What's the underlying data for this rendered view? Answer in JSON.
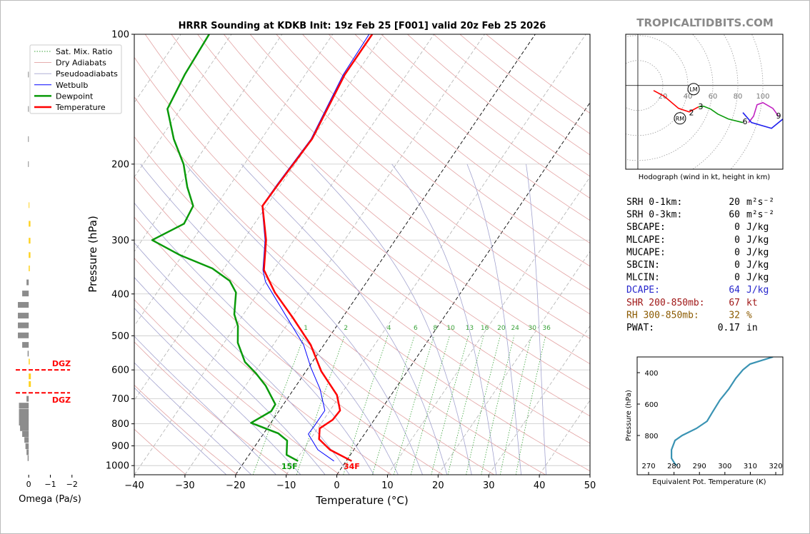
{
  "watermark": "TROPICALTIDBITS.COM",
  "chart_data": [
    {
      "type": "skewt",
      "title": "HRRR Sounding at KDKB Init: 19z Feb 25 [F001] valid 20z Feb 25 2026",
      "xlabel": "Temperature (°C)",
      "ylabel": "Pressure (hPa)",
      "xlim": [
        -40,
        50
      ],
      "ylim": [
        1050,
        100
      ],
      "log_y": true,
      "grid": true,
      "legend": "upper left",
      "xticks": [
        {
          "value": -40,
          "label": "−40"
        },
        {
          "value": -30,
          "label": "−30"
        },
        {
          "value": -20,
          "label": "−20"
        },
        {
          "value": -10,
          "label": "−10"
        },
        0,
        10,
        20,
        30,
        40,
        50
      ],
      "yticks": [
        100,
        200,
        300,
        400,
        500,
        600,
        700,
        800,
        900,
        1000
      ],
      "highlight_isotherms": [
        0,
        -20
      ],
      "mixing_ratio_labels": [
        1,
        2,
        4,
        6,
        8,
        10,
        13,
        16,
        20,
        24,
        30,
        36
      ],
      "reference_lines": [
        {
          "name": "Sat. Mix. Ratio",
          "color": "#3aa33a"
        },
        {
          "name": "Dry Adiabats",
          "color": "#e3a3a3"
        },
        {
          "name": "Pseudoadiabats",
          "color": "#a3a3cf"
        }
      ],
      "series": [
        {
          "name": "Wetbulb",
          "color": "#0000ff",
          "pressure": [
            976,
            919,
            845,
            811,
            745,
            665,
            593,
            525,
            463,
            375,
            352,
            300,
            250,
            223,
            175,
            124,
            100
          ],
          "values": [
            -2.4,
            -7.1,
            -11.1,
            -11,
            -11,
            -14.8,
            -19.5,
            -24,
            -30,
            -40,
            -42.1,
            -45.7,
            -50.9,
            -50.8,
            -50.2,
            -52.5,
            -52.8
          ]
        },
        {
          "name": "Dewpoint",
          "color": "#0a9a0a",
          "surface_label": "15F",
          "pressure": [
            976,
            944,
            875,
            842,
            796,
            748,
            721,
            653,
            611,
            575,
            519,
            475,
            446,
            397,
            373,
            349,
            325,
            300,
            275,
            250,
            226,
            200,
            175,
            149,
            124,
            100
          ],
          "values": [
            -9.5,
            -12.6,
            -14.4,
            -17.1,
            -23.9,
            -21.5,
            -21.6,
            -26,
            -29.6,
            -33.3,
            -37.3,
            -39.5,
            -41.8,
            -44.4,
            -47.2,
            -52.3,
            -60.5,
            -68,
            -63.9,
            -64.5,
            -68.2,
            -72,
            -77.3,
            -82.6,
            -83.8,
            -84.4
          ]
        },
        {
          "name": "Temperature",
          "color": "#ff0000",
          "surface_label": "34F",
          "pressure": [
            976,
            919,
            868,
            820,
            783,
            745,
            686,
            604,
            525,
            454,
            397,
            352,
            300,
            250,
            223,
            175,
            124,
            100
          ],
          "values": [
            1.1,
            -4.7,
            -8.3,
            -9.6,
            -8.2,
            -8,
            -10.7,
            -17,
            -22.6,
            -29.8,
            -36.7,
            -41.9,
            -45.5,
            -50.8,
            -50.6,
            -50,
            -52.2,
            -52.2
          ]
        }
      ]
    },
    {
      "type": "omega",
      "xlabel": "Omega (Pa/s)",
      "xlim": [
        0.6,
        -2.8
      ],
      "ylim": [
        1050,
        100
      ],
      "xticks": [
        0,
        {
          "value": -1,
          "label": "−1"
        },
        {
          "value": -2,
          "label": "−2"
        }
      ],
      "positive_color": "#8c8c8c",
      "negative_color": "#ffd21f",
      "pressure": [
        124,
        149,
        175,
        200,
        249,
        275,
        301,
        325,
        349,
        376,
        399,
        424,
        449,
        473,
        499,
        525,
        550,
        574,
        621,
        647,
        700,
        726,
        750,
        772,
        795,
        819,
        845,
        872,
        902,
        931,
        961
      ],
      "values": [
        0.03,
        0.03,
        0.03,
        0.03,
        -0.03,
        -0.08,
        -0.08,
        -0.08,
        -0.05,
        0.1,
        0.3,
        0.5,
        0.5,
        0.5,
        0.5,
        0.3,
        0.05,
        -0.05,
        -0.1,
        -0.1,
        0.1,
        0.45,
        0.45,
        0.45,
        0.45,
        0.4,
        0.3,
        0.2,
        0.15,
        0.1,
        0.05
      ],
      "dgz": {
        "label": "DGZ",
        "pressures": [
          600,
          678
        ],
        "color": "#ff0000"
      }
    },
    {
      "type": "hodograph",
      "caption": "Hodograph (wind in kt, height in km)",
      "xlim": [
        -9.7,
        116
      ],
      "ylim": [
        -67,
        41
      ],
      "ring_ticks": [
        20,
        40,
        60,
        80,
        100
      ],
      "segments": [
        {
          "color": "#ff0000",
          "u": [
            12.6,
            21.1,
            32.6,
            41.1,
            48.6
          ],
          "v": [
            -4,
            -8.6,
            -18.3,
            -21.1,
            -17.1
          ]
        },
        {
          "color": "#0a9a0a",
          "u": [
            48.6,
            52.6,
            58.3,
            64,
            72.6,
            84
          ],
          "v": [
            -17.1,
            -16.6,
            -18.9,
            -22.9,
            -26.9,
            -29.7
          ]
        },
        {
          "color": "#c020c0",
          "u": [
            88.6,
            92.6,
            95.4,
            100,
            108,
            112.6
          ],
          "v": [
            -29.7,
            -24.6,
            -15.4,
            -13.7,
            -18.3,
            -24.6
          ]
        },
        {
          "color": "#2020ee",
          "u": [
            116,
            106.9,
            90.9,
            84
          ],
          "v": [
            -26.9,
            -34.3,
            -29.7,
            -21.7
          ]
        }
      ],
      "height_labels": [
        {
          "label": "2",
          "u": 42.9,
          "v": -21.7
        },
        {
          "label": "3",
          "u": 50.3,
          "v": -16.6
        },
        {
          "label": "6",
          "u": 85.7,
          "v": -28.6
        },
        {
          "label": "9",
          "u": 112.6,
          "v": -24
        }
      ],
      "storm_motion": [
        {
          "label": "LM",
          "u": 44.6,
          "v": -2.9
        },
        {
          "label": "RM",
          "u": 33.7,
          "v": -26.3
        }
      ]
    },
    {
      "type": "line",
      "xlabel": "Equivalent Pot. Temperature (K)",
      "ylabel": "Pressure (hPa)",
      "xlim": [
        265.5,
        322.8
      ],
      "ylim": [
        1050,
        300
      ],
      "xticks": [
        270,
        280,
        290,
        300,
        310,
        320
      ],
      "yticks": [
        400,
        600,
        800
      ],
      "color": "#3a93b3",
      "x": [
        318.9,
        309.9,
        307.1,
        304.3,
        301.5,
        298.1,
        295,
        293,
        288.8,
        283.2,
        280.4,
        279,
        279,
        280.4,
        281.2
      ],
      "y": [
        300,
        345,
        382,
        436,
        505,
        573,
        655,
        709,
        755,
        800,
        832,
        891,
        945,
        982,
        991
      ]
    }
  ],
  "stats": [
    {
      "label": "SRH 0-1km:",
      "value": 20,
      "unit": "m²s⁻²",
      "color": "#000000"
    },
    {
      "label": "SRH 0-3km:",
      "value": 60,
      "unit": "m²s⁻²",
      "color": "#000000"
    },
    {
      "label": "SBCAPE:",
      "value": 0,
      "unit": "J/kg",
      "color": "#000000"
    },
    {
      "label": "MLCAPE:",
      "value": 0,
      "unit": "J/kg",
      "color": "#000000"
    },
    {
      "label": "MUCAPE:",
      "value": 0,
      "unit": "J/kg",
      "color": "#000000"
    },
    {
      "label": "SBCIN:",
      "value": 0,
      "unit": "J/kg",
      "color": "#000000"
    },
    {
      "label": "MLCIN:",
      "value": 0,
      "unit": "J/kg",
      "color": "#000000"
    },
    {
      "label": "DCAPE:",
      "value": 64,
      "unit": "J/kg",
      "color": "#2626cc"
    },
    {
      "label": "SHR 200-850mb:",
      "value": 67,
      "unit": "kt",
      "color": "#a01818"
    },
    {
      "label": "RH 300-850mb:",
      "value": 32,
      "unit": "%",
      "color": "#8b5a00"
    },
    {
      "label": "PWAT:",
      "value": 0.17,
      "unit": "in",
      "color": "#000000"
    }
  ]
}
